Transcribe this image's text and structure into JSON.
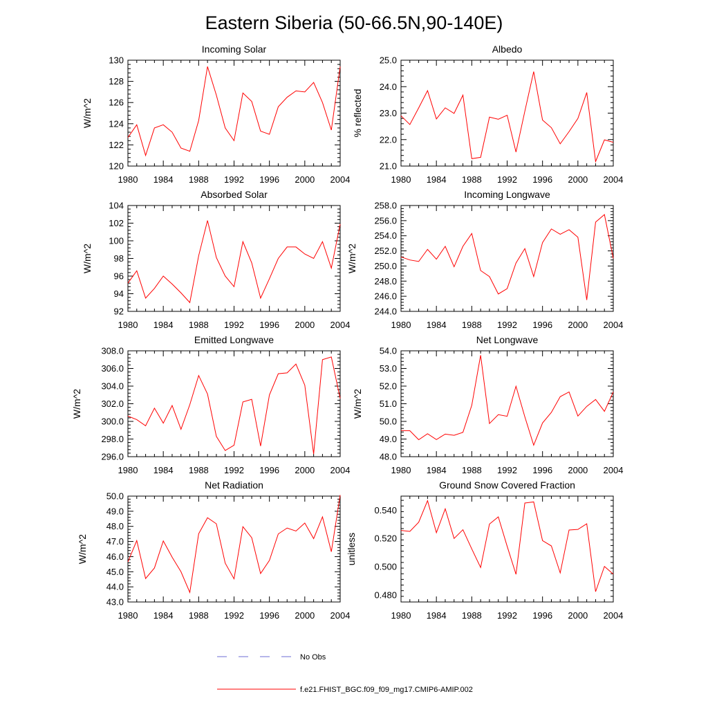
{
  "figure": {
    "title": "Eastern Siberia (50-66.5N,90-140E)",
    "legend": [
      {
        "label": "No Obs",
        "color": "#6b6bd6",
        "style": "dashed"
      },
      {
        "label": "f.e21.FHIST_BGC.f09_f09_mg17.CMIP6-AMIP.002",
        "color": "#ff0000",
        "style": "solid"
      }
    ]
  },
  "chart_data": [
    {
      "type": "line",
      "title": "Incoming Solar",
      "ylabel": "W/m^2",
      "xlabel": "",
      "xlim": [
        1980,
        2004
      ],
      "ylim": [
        120,
        130
      ],
      "xticks": [
        1980,
        1984,
        1988,
        1992,
        1996,
        2000,
        2004
      ],
      "yticks": [
        120,
        122,
        124,
        126,
        128,
        130
      ],
      "ydecimals": 0,
      "x": [
        1980,
        1981,
        1982,
        1983,
        1984,
        1985,
        1986,
        1987,
        1988,
        1989,
        1990,
        1991,
        1992,
        1993,
        1994,
        1995,
        1996,
        1997,
        1998,
        1999,
        2000,
        2001,
        2002,
        2003,
        2004
      ],
      "series": [
        {
          "name": "f.e21.FHIST_BGC.f09_f09_mg17.CMIP6-AMIP.002",
          "values": [
            122.7,
            123.9,
            121.0,
            123.6,
            123.9,
            123.2,
            121.7,
            121.4,
            124.3,
            129.4,
            126.7,
            123.6,
            122.4,
            126.9,
            126.1,
            123.3,
            123.0,
            125.6,
            126.5,
            127.1,
            127.0,
            127.9,
            126.0,
            123.4,
            129.4
          ]
        }
      ]
    },
    {
      "type": "line",
      "title": "Albedo",
      "ylabel": "% reflected",
      "xlabel": "",
      "xlim": [
        1980,
        2004
      ],
      "ylim": [
        21.0,
        25.0
      ],
      "xticks": [
        1980,
        1984,
        1988,
        1992,
        1996,
        2000,
        2004
      ],
      "yticks": [
        21.0,
        22.0,
        23.0,
        24.0,
        25.0
      ],
      "ydecimals": 1,
      "x": [
        1980,
        1981,
        1982,
        1983,
        1984,
        1985,
        1986,
        1987,
        1988,
        1989,
        1990,
        1991,
        1992,
        1993,
        1994,
        1995,
        1996,
        1997,
        1998,
        1999,
        2000,
        2001,
        2002,
        2003,
        2004
      ],
      "series": [
        {
          "name": "f.e21.FHIST_BGC.f09_f09_mg17.CMIP6-AMIP.002",
          "values": [
            22.9,
            22.57,
            23.2,
            23.85,
            22.78,
            23.2,
            22.99,
            23.68,
            21.28,
            21.33,
            22.85,
            22.77,
            22.92,
            21.53,
            23.07,
            24.57,
            22.74,
            22.45,
            21.84,
            22.3,
            22.8,
            23.78,
            21.17,
            21.99,
            21.9
          ]
        }
      ]
    },
    {
      "type": "line",
      "title": "Absorbed Solar",
      "ylabel": "W/m^2",
      "xlabel": "",
      "xlim": [
        1980,
        2004
      ],
      "ylim": [
        92,
        104
      ],
      "xticks": [
        1980,
        1984,
        1988,
        1992,
        1996,
        2000,
        2004
      ],
      "yticks": [
        92,
        94,
        96,
        98,
        100,
        102,
        104
      ],
      "ydecimals": 0,
      "x": [
        1980,
        1981,
        1982,
        1983,
        1984,
        1985,
        1986,
        1987,
        1988,
        1989,
        1990,
        1991,
        1992,
        1993,
        1994,
        1995,
        1996,
        1997,
        1998,
        1999,
        2000,
        2001,
        2002,
        2003,
        2004
      ],
      "series": [
        {
          "name": "f.e21.FHIST_BGC.f09_f09_mg17.CMIP6-AMIP.002",
          "values": [
            95.2,
            96.6,
            93.5,
            94.6,
            96.0,
            95.1,
            94.1,
            93.0,
            98.3,
            102.3,
            98.1,
            96.0,
            94.8,
            99.9,
            97.5,
            93.5,
            95.7,
            98.0,
            99.3,
            99.3,
            98.5,
            98.0,
            99.9,
            96.9,
            101.9
          ]
        }
      ]
    },
    {
      "type": "line",
      "title": "Incoming Longwave",
      "ylabel": "W/m^2",
      "xlabel": "",
      "xlim": [
        1980,
        2004
      ],
      "ylim": [
        244.0,
        258.0
      ],
      "xticks": [
        1980,
        1984,
        1988,
        1992,
        1996,
        2000,
        2004
      ],
      "yticks": [
        244.0,
        246.0,
        248.0,
        250.0,
        252.0,
        254.0,
        256.0,
        258.0
      ],
      "ydecimals": 1,
      "x": [
        1980,
        1981,
        1982,
        1983,
        1984,
        1985,
        1986,
        1987,
        1988,
        1989,
        1990,
        1991,
        1992,
        1993,
        1994,
        1995,
        1996,
        1997,
        1998,
        1999,
        2000,
        2001,
        2002,
        2003,
        2004
      ],
      "series": [
        {
          "name": "f.e21.FHIST_BGC.f09_f09_mg17.CMIP6-AMIP.002",
          "values": [
            251.2,
            250.8,
            250.6,
            252.2,
            250.9,
            252.6,
            249.9,
            252.6,
            254.3,
            249.4,
            248.6,
            246.3,
            247.0,
            250.4,
            252.3,
            248.6,
            253.1,
            254.9,
            254.2,
            254.8,
            253.8,
            245.5,
            255.8,
            256.8,
            251.0
          ]
        }
      ]
    },
    {
      "type": "line",
      "title": "Emitted Longwave",
      "ylabel": "W/m^2",
      "xlabel": "",
      "xlim": [
        1980,
        2004
      ],
      "ylim": [
        296.0,
        308.0
      ],
      "xticks": [
        1980,
        1984,
        1988,
        1992,
        1996,
        2000,
        2004
      ],
      "yticks": [
        296.0,
        298.0,
        300.0,
        302.0,
        304.0,
        306.0,
        308.0
      ],
      "ydecimals": 1,
      "x": [
        1980,
        1981,
        1982,
        1983,
        1984,
        1985,
        1986,
        1987,
        1988,
        1989,
        1990,
        1991,
        1992,
        1993,
        1994,
        1995,
        1996,
        1997,
        1998,
        1999,
        2000,
        2001,
        2002,
        2003,
        2004
      ],
      "series": [
        {
          "name": "f.e21.FHIST_BGC.f09_f09_mg17.CMIP6-AMIP.002",
          "values": [
            300.6,
            300.2,
            299.5,
            301.5,
            299.8,
            301.8,
            299.1,
            301.9,
            305.2,
            303.1,
            298.3,
            296.7,
            297.3,
            302.2,
            302.5,
            297.2,
            303.0,
            305.4,
            305.5,
            306.5,
            304.1,
            296.3,
            307.0,
            307.3,
            302.6
          ]
        }
      ]
    },
    {
      "type": "line",
      "title": "Net Longwave",
      "ylabel": "W/m^2",
      "xlabel": "",
      "xlim": [
        1980,
        2004
      ],
      "ylim": [
        48.0,
        54.0
      ],
      "xticks": [
        1980,
        1984,
        1988,
        1992,
        1996,
        2000,
        2004
      ],
      "yticks": [
        48.0,
        49.0,
        50.0,
        51.0,
        52.0,
        53.0,
        54.0
      ],
      "ydecimals": 1,
      "x": [
        1980,
        1981,
        1982,
        1983,
        1984,
        1985,
        1986,
        1987,
        1988,
        1989,
        1990,
        1991,
        1992,
        1993,
        1994,
        1995,
        1996,
        1997,
        1998,
        1999,
        2000,
        2001,
        2002,
        2003,
        2004
      ],
      "series": [
        {
          "name": "f.e21.FHIST_BGC.f09_f09_mg17.CMIP6-AMIP.002",
          "values": [
            49.48,
            49.47,
            48.96,
            49.3,
            48.97,
            49.28,
            49.21,
            49.38,
            50.91,
            53.75,
            49.88,
            50.38,
            50.29,
            51.99,
            50.26,
            48.65,
            49.91,
            50.51,
            51.4,
            51.67,
            50.3,
            50.85,
            51.24,
            50.57,
            51.67
          ]
        }
      ]
    },
    {
      "type": "line",
      "title": "Net Radiation",
      "ylabel": "W/m^2",
      "xlabel": "",
      "xlim": [
        1980,
        2004
      ],
      "ylim": [
        43.0,
        50.0
      ],
      "xticks": [
        1980,
        1984,
        1988,
        1992,
        1996,
        2000,
        2004
      ],
      "yticks": [
        43.0,
        44.0,
        45.0,
        46.0,
        47.0,
        48.0,
        49.0,
        50.0
      ],
      "ydecimals": 1,
      "x": [
        1980,
        1981,
        1982,
        1983,
        1984,
        1985,
        1986,
        1987,
        1988,
        1989,
        1990,
        1991,
        1992,
        1993,
        1994,
        1995,
        1996,
        1997,
        1998,
        1999,
        2000,
        2001,
        2002,
        2003,
        2004
      ],
      "series": [
        {
          "name": "f.e21.FHIST_BGC.f09_f09_mg17.CMIP6-AMIP.002",
          "values": [
            45.65,
            47.06,
            44.55,
            45.25,
            47.04,
            45.96,
            45.0,
            43.63,
            47.51,
            48.57,
            48.17,
            45.57,
            44.53,
            47.98,
            47.25,
            44.88,
            45.75,
            47.5,
            47.89,
            47.69,
            48.22,
            47.19,
            48.63,
            46.32,
            50.07
          ]
        }
      ]
    },
    {
      "type": "line",
      "title": "Ground Snow Covered Fraction",
      "ylabel": "unitless",
      "xlabel": "",
      "xlim": [
        1980,
        2004
      ],
      "ylim": [
        0.475,
        0.55
      ],
      "xticks": [
        1980,
        1984,
        1988,
        1992,
        1996,
        2000,
        2004
      ],
      "yticks": [
        0.48,
        0.5,
        0.52,
        0.54
      ],
      "ydecimals": 3,
      "x": [
        1980,
        1981,
        1982,
        1983,
        1984,
        1985,
        1986,
        1987,
        1988,
        1989,
        1990,
        1991,
        1992,
        1993,
        1994,
        1995,
        1996,
        1997,
        1998,
        1999,
        2000,
        2001,
        2002,
        2003,
        2004
      ],
      "series": [
        {
          "name": "f.e21.FHIST_BGC.f09_f09_mg17.CMIP6-AMIP.002",
          "values": [
            0.5257,
            0.525,
            0.5315,
            0.5468,
            0.5241,
            0.541,
            0.52,
            0.5262,
            0.5126,
            0.4994,
            0.5302,
            0.5353,
            0.5145,
            0.4946,
            0.5451,
            0.5459,
            0.5185,
            0.5147,
            0.4956,
            0.526,
            0.5264,
            0.5304,
            0.4823,
            0.5002,
            0.4947
          ]
        }
      ]
    }
  ]
}
